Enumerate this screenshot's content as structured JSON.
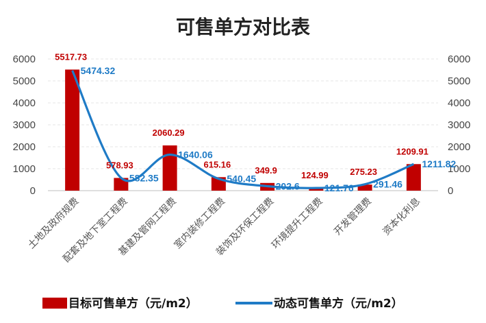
{
  "chart_data": {
    "type": "bar",
    "title": "可售单方对比表",
    "categories": [
      "土地及政府规费",
      "配套及地下室工程费",
      "基建及管网工程费",
      "室内装修工程费",
      "装饰及环保工程费",
      "环境提升工程费",
      "开发管理费",
      "资本化利息"
    ],
    "series": [
      {
        "name": "目标可售单方（元/m2）",
        "type": "bar",
        "axis": "left",
        "color": "#c00000",
        "values": [
          5517.73,
          578.93,
          2060.29,
          615.16,
          349.9,
          124.99,
          275.23,
          1209.91
        ],
        "labels": [
          "5517.73",
          "578.93",
          "2060.29",
          "615.16",
          "349.9",
          "124.99",
          "275.23",
          "1209.91"
        ]
      },
      {
        "name": "动态可售单方（元/m2）",
        "type": "line",
        "smooth": true,
        "axis": "right",
        "color": "#1f7bc6",
        "values": [
          5474.32,
          582.35,
          1640.06,
          540.45,
          202.6,
          121.76,
          291.46,
          1211.82
        ],
        "labels": [
          "5474.32",
          "582.35",
          "1640.06",
          "540.45",
          "202.6",
          "121.76",
          "291.46",
          "1211.82"
        ]
      }
    ],
    "ylim": [
      0,
      6000
    ],
    "yticks": [
      "0",
      "1000",
      "2000",
      "3000",
      "4000",
      "5000",
      "6000"
    ],
    "y2lim": [
      0,
      6000
    ],
    "y2ticks": [
      "0",
      "1000",
      "2000",
      "3000",
      "4000",
      "5000",
      "6000"
    ],
    "grid": true,
    "legend": "bottom"
  }
}
